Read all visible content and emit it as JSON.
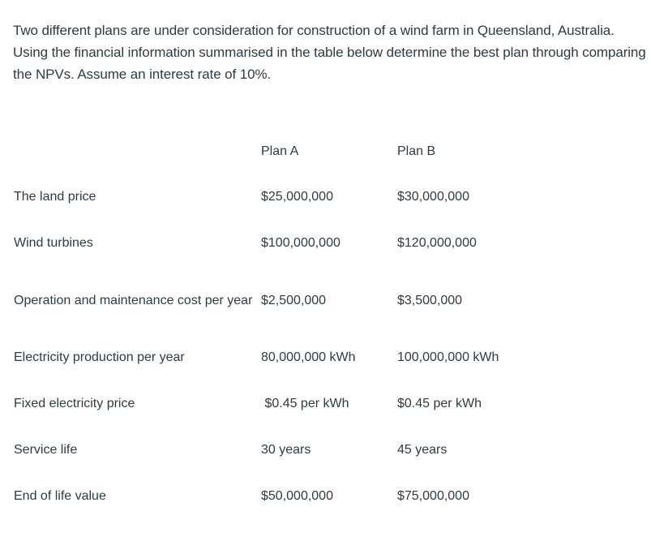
{
  "question": {
    "text": "Two different plans are under consideration for construction of a wind farm in Queensland, Australia. Using the financial information summarised in the table below determine the best plan through comparing the NPVs. Assume an interest rate of 10%."
  },
  "table": {
    "headers": {
      "label": "",
      "plan_a": "Plan A",
      "plan_b": "Plan B"
    },
    "rows": [
      {
        "label": "The land price",
        "plan_a": "$25,000,000",
        "plan_b": "$30,000,000"
      },
      {
        "label": "Wind turbines",
        "plan_a": "$100,000,000",
        "plan_b": "$120,000,000"
      },
      {
        "label": "Operation and maintenance cost per year",
        "plan_a": "$2,500,000",
        "plan_b": "$3,500,000"
      },
      {
        "label": "Electricity production per year",
        "plan_a": "80,000,000 kWh",
        "plan_b": "100,000,000 kWh"
      },
      {
        "label": "Fixed electricity price",
        "plan_a": " $0.45 per kWh",
        "plan_b": "$0.45 per kWh"
      },
      {
        "label": "Service life",
        "plan_a": "30 years",
        "plan_b": "45 years"
      },
      {
        "label": "End of life value",
        "plan_a": "$50,000,000",
        "plan_b": "$75,000,000"
      }
    ]
  }
}
